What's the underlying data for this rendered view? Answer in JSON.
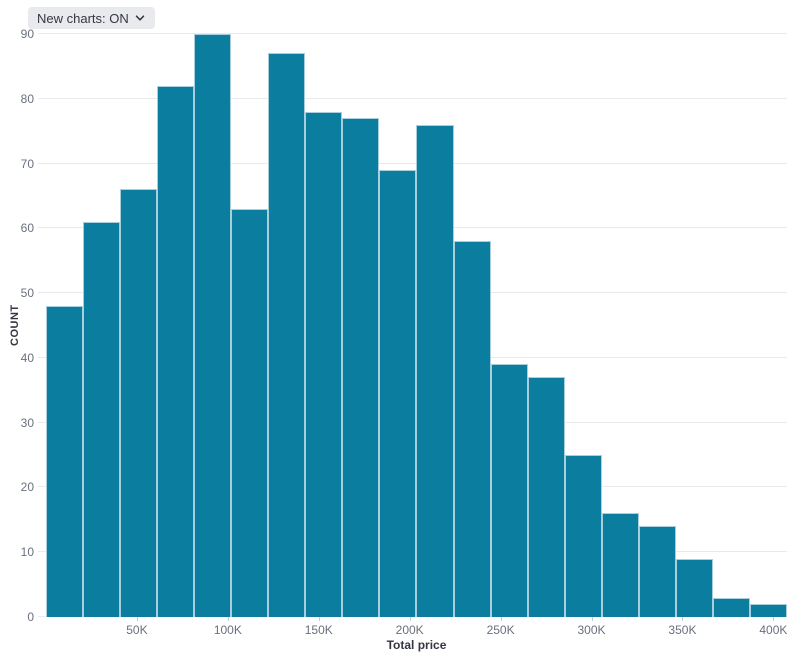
{
  "controls": {
    "new_charts_toggle": {
      "label": "New charts: ON"
    }
  },
  "chart_data": {
    "type": "bar",
    "variant": "histogram",
    "title": "",
    "xlabel": "Total price",
    "ylabel": "COUNT",
    "x_domain": [
      0,
      407500
    ],
    "ylim": [
      0,
      90
    ],
    "y_ticks": [
      0,
      10,
      20,
      30,
      40,
      50,
      60,
      70,
      80,
      90
    ],
    "x_ticks": [
      {
        "value": 50000,
        "label": "50K"
      },
      {
        "value": 100000,
        "label": "100K"
      },
      {
        "value": 150000,
        "label": "150K"
      },
      {
        "value": 200000,
        "label": "200K"
      },
      {
        "value": 250000,
        "label": "250K"
      },
      {
        "value": 300000,
        "label": "300K"
      },
      {
        "value": 350000,
        "label": "350K"
      },
      {
        "value": 400000,
        "label": "400K"
      }
    ],
    "values": [
      48,
      61,
      66,
      82,
      90,
      63,
      87,
      78,
      77,
      69,
      76,
      58,
      39,
      37,
      25,
      16,
      14,
      9,
      3,
      2
    ],
    "grid": "horizontal-only",
    "legend": "none",
    "colors": {
      "bar_fill": "#0b7d9f",
      "bar_stroke": "#a9cede",
      "grid": "#e8eaed",
      "tick_text": "#69707d",
      "axis_title_text": "#343741"
    }
  }
}
